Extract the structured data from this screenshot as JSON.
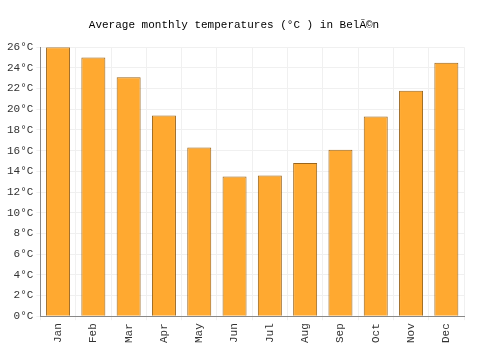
{
  "chart_data": {
    "type": "bar",
    "title": "Average monthly temperatures (°C ) in BelÃ©n",
    "categories": [
      "Jan",
      "Feb",
      "Mar",
      "Apr",
      "May",
      "Jun",
      "Jul",
      "Aug",
      "Sep",
      "Oct",
      "Nov",
      "Dec"
    ],
    "values": [
      26.0,
      25.0,
      23.1,
      19.4,
      16.3,
      13.5,
      13.6,
      14.8,
      16.1,
      19.3,
      21.8,
      24.5
    ],
    "color": "#ffa930",
    "ylim": [
      0,
      26
    ],
    "yticks": [
      {
        "value": 0,
        "label": "0°C"
      },
      {
        "value": 2,
        "label": "2°C"
      },
      {
        "value": 4,
        "label": "4°C"
      },
      {
        "value": 6,
        "label": "6°C"
      },
      {
        "value": 8,
        "label": "8°C"
      },
      {
        "value": 10,
        "label": "10°C"
      },
      {
        "value": 12,
        "label": "12°C"
      },
      {
        "value": 14,
        "label": "14°C"
      },
      {
        "value": 16,
        "label": "16°C"
      },
      {
        "value": 18,
        "label": "18°C"
      },
      {
        "value": 20,
        "label": "20°C"
      },
      {
        "value": 22,
        "label": "22°C"
      },
      {
        "value": 24,
        "label": "24°C"
      },
      {
        "value": 26,
        "label": "26°C"
      }
    ],
    "grid": true
  }
}
